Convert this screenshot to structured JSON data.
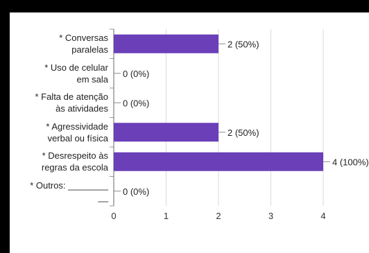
{
  "chart_data": {
    "type": "bar",
    "orientation": "horizontal",
    "categories": [
      [
        "* Conversas",
        "paralelas"
      ],
      [
        "* Uso de celular",
        "em sala"
      ],
      [
        "* Falta de atenção",
        "às atividades"
      ],
      [
        "* Agressividade",
        "verbal ou física"
      ],
      [
        "* Desrespeito às",
        "regras da escola"
      ],
      [
        "* Outros: ________",
        "__"
      ]
    ],
    "values": [
      2,
      0,
      0,
      2,
      4,
      0
    ],
    "data_labels": [
      "2 (50%)",
      "0 (0%)",
      "0 (0%)",
      "2 (50%)",
      "4 (100%)",
      "0 (0%)"
    ],
    "xlim": [
      0,
      4
    ],
    "x_ticks": [
      "0",
      "1",
      "2",
      "3",
      "4"
    ],
    "grid": true,
    "bar_color": "#6a3fb8",
    "title": "",
    "xlabel": "",
    "ylabel": ""
  }
}
